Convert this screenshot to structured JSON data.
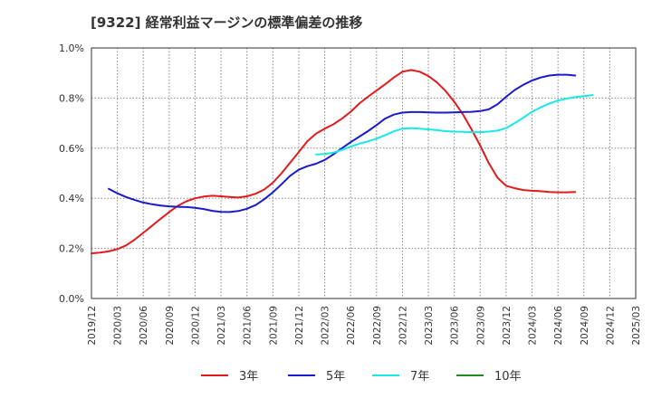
{
  "chart_data": {
    "type": "line",
    "title": "[9322]  経常利益マージンの標準偏差の推移",
    "xlabel": "",
    "ylabel": "",
    "ylim": [
      0,
      0.01
    ],
    "y_ticks": [
      "0.0%",
      "0.2%",
      "0.4%",
      "0.6%",
      "0.8%",
      "1.0%"
    ],
    "y_tick_values": [
      0,
      0.002,
      0.004,
      0.006,
      0.008,
      0.01
    ],
    "x_ticks": [
      "2019/12",
      "2020/03",
      "2020/06",
      "2020/09",
      "2020/12",
      "2021/03",
      "2021/06",
      "2021/09",
      "2021/12",
      "2022/03",
      "2022/06",
      "2022/09",
      "2022/12",
      "2023/03",
      "2023/06",
      "2023/09",
      "2023/12",
      "2024/03",
      "2024/06",
      "2024/09",
      "2024/12",
      "2025/03"
    ],
    "grid": true,
    "legend_position": "bottom",
    "series": [
      {
        "name": "3年",
        "color": "#e31a1c",
        "start_index": 0,
        "values": [
          0.0018,
          0.00183,
          0.00188,
          0.00197,
          0.00212,
          0.00235,
          0.00262,
          0.0029,
          0.00318,
          0.00345,
          0.0037,
          0.00388,
          0.004,
          0.00407,
          0.0041,
          0.00408,
          0.00405,
          0.00403,
          0.00408,
          0.00418,
          0.00435,
          0.00462,
          0.005,
          0.00542,
          0.00585,
          0.00628,
          0.00658,
          0.00678,
          0.00695,
          0.00718,
          0.00745,
          0.00778,
          0.00805,
          0.0083,
          0.00855,
          0.00882,
          0.00905,
          0.00912,
          0.00905,
          0.00888,
          0.00862,
          0.00828,
          0.00785,
          0.00735,
          0.00675,
          0.0061,
          0.0054,
          0.00482,
          0.0045,
          0.0044,
          0.00433,
          0.0043,
          0.00428,
          0.00425,
          0.00424,
          0.00424,
          0.00425
        ]
      },
      {
        "name": "5年",
        "color": "#1a1acf",
        "start_index": 2,
        "values": [
          0.00438,
          0.0042,
          0.00405,
          0.00393,
          0.00383,
          0.00376,
          0.00371,
          0.00368,
          0.00366,
          0.00365,
          0.00362,
          0.00357,
          0.0035,
          0.00346,
          0.00345,
          0.00349,
          0.00358,
          0.00373,
          0.00396,
          0.00424,
          0.00456,
          0.0049,
          0.00514,
          0.00528,
          0.00538,
          0.00553,
          0.00575,
          0.006,
          0.00624,
          0.00646,
          0.00668,
          0.00692,
          0.00718,
          0.00734,
          0.00742,
          0.00744,
          0.00744,
          0.00743,
          0.00742,
          0.00742,
          0.00743,
          0.00744,
          0.00745,
          0.00748,
          0.00755,
          0.00775,
          0.00805,
          0.00832,
          0.00853,
          0.0087,
          0.00882,
          0.0089,
          0.00893,
          0.00893,
          0.0089
        ]
      },
      {
        "name": "7年",
        "color": "#18e8e8",
        "start_index": 26,
        "values": [
          0.00575,
          0.00577,
          0.00582,
          0.00593,
          0.00606,
          0.00618,
          0.00627,
          0.00638,
          0.00652,
          0.00667,
          0.00678,
          0.0068,
          0.00678,
          0.00675,
          0.00672,
          0.00668,
          0.00666,
          0.00665,
          0.00664,
          0.00664,
          0.00666,
          0.0067,
          0.0068,
          0.007,
          0.00722,
          0.00745,
          0.00763,
          0.00778,
          0.0079,
          0.00798,
          0.00804,
          0.00808,
          0.00812
        ]
      },
      {
        "name": "10年",
        "color": "#1e8c1e",
        "start_index": 0,
        "values": []
      }
    ]
  }
}
